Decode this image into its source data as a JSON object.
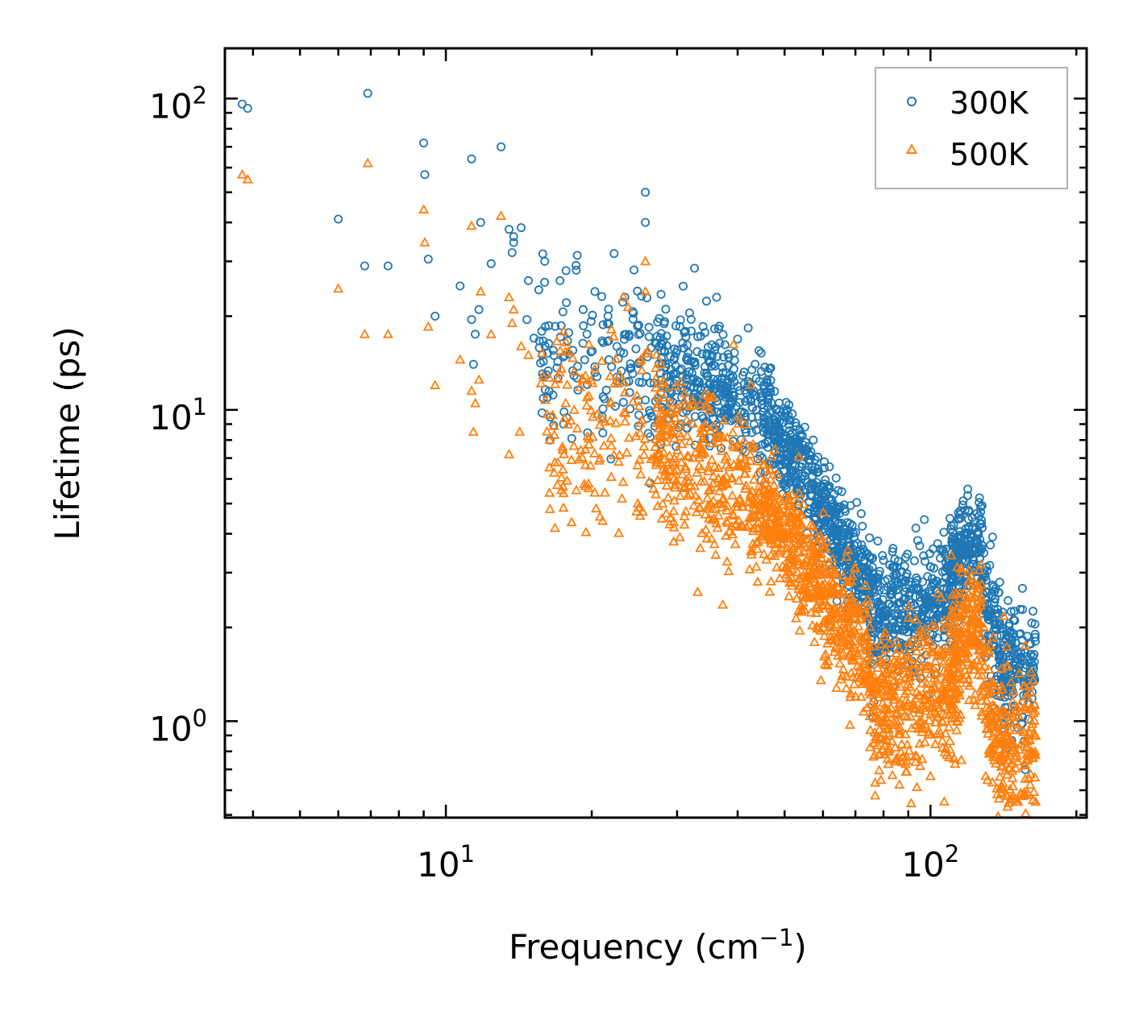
{
  "chart_data": {
    "type": "scatter",
    "xscale": "log",
    "yscale": "log",
    "xlim": [
      3.5,
      210
    ],
    "ylim": [
      0.49,
      145
    ],
    "xlabel": {
      "base": "Frequency (cm",
      "sup": "−1",
      "tail": ")"
    },
    "ylabel": "Lifetime (ps)",
    "x_ticks": [
      {
        "value": 10,
        "base": "10",
        "exp": "1"
      },
      {
        "value": 100,
        "base": "10",
        "exp": "2"
      }
    ],
    "y_ticks": [
      {
        "value": 1,
        "base": "10",
        "exp": "0"
      },
      {
        "value": 10,
        "base": "10",
        "exp": "1"
      },
      {
        "value": 100,
        "base": "10",
        "exp": "2"
      }
    ],
    "legend": {
      "position": "upper-right"
    },
    "series": [
      {
        "name": "300K",
        "marker": "circle",
        "color": "#1f77b4",
        "isolated_points": [
          [
            3.8,
            96
          ],
          [
            3.9,
            93
          ],
          [
            6.0,
            41
          ],
          [
            6.9,
            104
          ],
          [
            6.8,
            29
          ],
          [
            7.6,
            29
          ],
          [
            9.0,
            72
          ],
          [
            9.05,
            57
          ],
          [
            9.2,
            30.5
          ],
          [
            9.5,
            20
          ],
          [
            10.7,
            25
          ],
          [
            11.3,
            64
          ],
          [
            11.3,
            19.5
          ],
          [
            11.5,
            17.5
          ],
          [
            11.7,
            21
          ],
          [
            11.8,
            40
          ],
          [
            11.4,
            14
          ],
          [
            12.4,
            29.5
          ],
          [
            13.0,
            70
          ],
          [
            13.5,
            38
          ],
          [
            13.8,
            36
          ],
          [
            13.8,
            34.5
          ],
          [
            14.3,
            38.5
          ],
          [
            13.7,
            32
          ],
          [
            14.8,
            26
          ],
          [
            14.7,
            19.5
          ],
          [
            15.2,
            17
          ],
          [
            15.8,
            15
          ],
          [
            16.4,
            8.0
          ],
          [
            17.2,
            26
          ],
          [
            17.7,
            28
          ],
          [
            17.5,
            9
          ],
          [
            19.2,
            21
          ],
          [
            20.3,
            24
          ],
          [
            21.6,
            20
          ],
          [
            23.4,
            23
          ],
          [
            25.8,
            50
          ],
          [
            25.8,
            40
          ],
          [
            27.8,
            23.5
          ],
          [
            32.6,
            28.5
          ],
          [
            36.2,
            23
          ]
        ],
        "clusters": [
          {
            "x0": 15.5,
            "x1": 28.0,
            "y0": 15.0,
            "y1": 14.0,
            "spread": 0.15,
            "count": 150
          },
          {
            "x0": 27.0,
            "x1": 45.0,
            "y0": 14.0,
            "y1": 10.0,
            "spread": 0.1,
            "count": 330
          },
          {
            "x0": 45.0,
            "x1": 75.0,
            "y0": 10.0,
            "y1": 2.6,
            "spread": 0.08,
            "count": 560
          },
          {
            "x0": 75.0,
            "x1": 115.0,
            "y0": 2.2,
            "y1": 2.5,
            "spread": 0.1,
            "count": 420
          },
          {
            "x0": 110.0,
            "x1": 128.0,
            "y0": 3.2,
            "y1": 3.9,
            "spread": 0.08,
            "count": 170
          },
          {
            "x0": 127.0,
            "x1": 140.0,
            "y0": 2.6,
            "y1": 1.5,
            "spread": 0.1,
            "count": 100
          },
          {
            "x0": 140.0,
            "x1": 165.0,
            "y0": 1.5,
            "y1": 1.5,
            "spread": 0.1,
            "count": 160
          }
        ]
      },
      {
        "name": "500K",
        "marker": "triangle",
        "color": "#ff7f0e",
        "isolated_points": [
          [
            3.8,
            57
          ],
          [
            3.9,
            55
          ],
          [
            6.0,
            24.5
          ],
          [
            6.9,
            62
          ],
          [
            6.8,
            17.5
          ],
          [
            7.6,
            17.5
          ],
          [
            9.0,
            44
          ],
          [
            9.05,
            34.5
          ],
          [
            9.2,
            18.5
          ],
          [
            9.5,
            12
          ],
          [
            10.7,
            14.5
          ],
          [
            11.3,
            39
          ],
          [
            11.3,
            11.5
          ],
          [
            11.5,
            10.5
          ],
          [
            11.7,
            12.5
          ],
          [
            11.8,
            24
          ],
          [
            11.4,
            8.5
          ],
          [
            12.4,
            17.5
          ],
          [
            13.0,
            42
          ],
          [
            13.5,
            23
          ],
          [
            13.8,
            21
          ],
          [
            13.5,
            7.2
          ],
          [
            14.3,
            16
          ],
          [
            13.7,
            19
          ],
          [
            14.8,
            15
          ],
          [
            14.2,
            8.5
          ],
          [
            16.4,
            4.8
          ],
          [
            17.2,
            15.5
          ],
          [
            17.7,
            16.5
          ],
          [
            17.5,
            5.4
          ],
          [
            19.2,
            12.5
          ],
          [
            20.3,
            13.5
          ],
          [
            25.8,
            30
          ],
          [
            25.8,
            24
          ],
          [
            27.8,
            14
          ],
          [
            19.7,
            5.6
          ]
        ],
        "clusters": [
          {
            "x0": 15.5,
            "x1": 28.0,
            "y0": 9.5,
            "y1": 8.0,
            "spread": 0.16,
            "count": 150
          },
          {
            "x0": 27.0,
            "x1": 45.0,
            "y0": 8.0,
            "y1": 5.0,
            "spread": 0.12,
            "count": 330
          },
          {
            "x0": 45.0,
            "x1": 75.0,
            "y0": 5.0,
            "y1": 1.5,
            "spread": 0.1,
            "count": 560
          },
          {
            "x0": 75.0,
            "x1": 115.0,
            "y0": 1.1,
            "y1": 1.3,
            "spread": 0.12,
            "count": 420
          },
          {
            "x0": 110.0,
            "x1": 128.0,
            "y0": 1.6,
            "y1": 2.2,
            "spread": 0.1,
            "count": 170
          },
          {
            "x0": 127.0,
            "x1": 140.0,
            "y0": 1.4,
            "y1": 0.8,
            "spread": 0.1,
            "count": 100
          },
          {
            "x0": 140.0,
            "x1": 165.0,
            "y0": 0.85,
            "y1": 0.85,
            "spread": 0.12,
            "count": 160
          }
        ]
      }
    ]
  }
}
